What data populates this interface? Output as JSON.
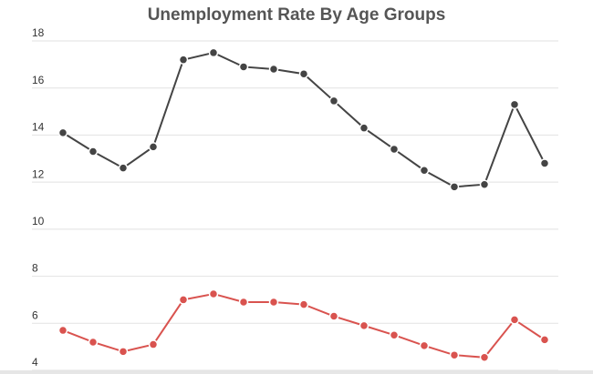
{
  "chart_data": {
    "type": "line",
    "title": "Unemployment Rate By Age Groups",
    "categories": [
      null,
      null,
      null,
      null,
      null,
      null,
      null,
      null,
      null,
      null,
      null,
      null,
      null,
      null,
      null,
      null,
      null
    ],
    "series": [
      {
        "color": "#444444",
        "values": [
          14.1,
          13.3,
          12.6,
          13.5,
          17.2,
          17.5,
          16.9,
          16.8,
          16.6,
          15.45,
          14.3,
          13.4,
          12.5,
          11.8,
          11.9,
          15.3,
          12.8
        ]
      },
      {
        "color": "#d9534f",
        "values": [
          5.7,
          5.2,
          4.8,
          5.1,
          7.0,
          7.25,
          6.9,
          6.9,
          6.8,
          6.3,
          5.9,
          5.5,
          5.05,
          4.65,
          4.55,
          6.15,
          5.3
        ]
      }
    ],
    "ylim": [
      4,
      18
    ],
    "yticks": [
      4,
      6,
      8,
      10,
      12,
      14,
      16,
      18
    ],
    "grid": true
  }
}
